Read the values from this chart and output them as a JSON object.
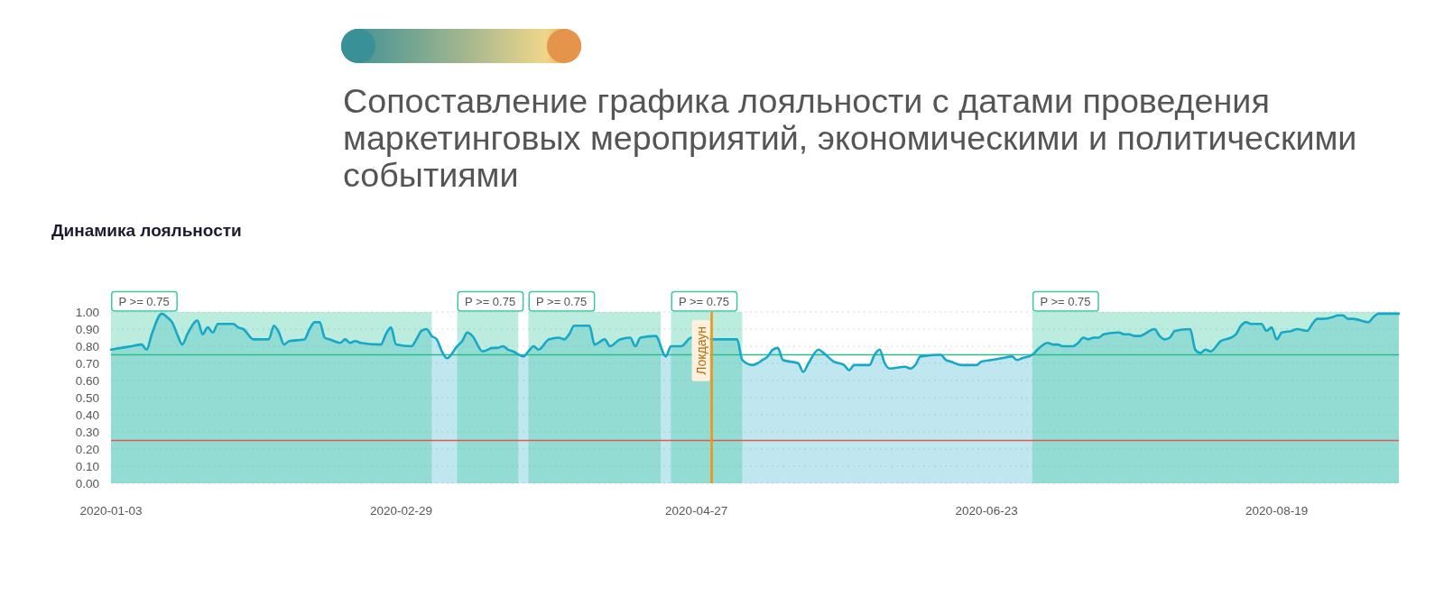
{
  "chart_data": {
    "type": "area",
    "title": "Сопоставление графика лояльности с датами проведения маркетинговых мероприятий, экономическими и политическими событиями",
    "subtitle": "Динамика лояльности",
    "x": [
      "2020-01-03",
      "2020-01-05",
      "2020-01-07",
      "2020-01-09",
      "2020-01-10",
      "2020-01-11",
      "2020-01-13",
      "2020-01-14",
      "2020-01-15",
      "2020-01-16",
      "2020-01-17",
      "2020-01-18",
      "2020-01-20",
      "2020-01-21",
      "2020-01-22",
      "2020-01-23",
      "2020-01-24",
      "2020-01-27",
      "2020-01-28",
      "2020-01-29",
      "2020-01-31",
      "2020-02-03",
      "2020-02-04",
      "2020-02-05",
      "2020-02-06",
      "2020-02-07",
      "2020-02-10",
      "2020-02-11",
      "2020-02-12",
      "2020-02-13",
      "2020-02-14",
      "2020-02-15",
      "2020-02-17",
      "2020-02-18",
      "2020-02-19",
      "2020-02-20",
      "2020-02-21",
      "2020-02-25",
      "2020-02-26",
      "2020-02-27",
      "2020-02-28",
      "2020-03-02",
      "2020-03-03",
      "2020-03-04",
      "2020-03-05",
      "2020-03-06",
      "2020-03-07",
      "2020-03-08",
      "2020-03-09",
      "2020-03-11",
      "2020-03-12",
      "2020-03-13",
      "2020-03-14",
      "2020-03-16",
      "2020-03-18",
      "2020-03-19",
      "2020-03-20",
      "2020-03-21",
      "2020-03-22",
      "2020-03-24",
      "2020-03-25",
      "2020-03-26",
      "2020-03-27",
      "2020-03-29",
      "2020-03-31",
      "2020-04-01",
      "2020-04-02",
      "2020-04-03",
      "2020-04-06",
      "2020-04-07",
      "2020-04-09",
      "2020-04-10",
      "2020-04-12",
      "2020-04-14",
      "2020-04-15",
      "2020-04-16",
      "2020-04-19",
      "2020-04-21",
      "2020-04-22",
      "2020-04-24",
      "2020-04-26",
      "2020-05-01",
      "2020-05-05",
      "2020-05-06",
      "2020-05-08",
      "2020-05-09",
      "2020-05-10",
      "2020-05-11",
      "2020-05-12",
      "2020-05-13",
      "2020-05-14",
      "2020-05-17",
      "2020-05-18",
      "2020-05-19",
      "2020-05-21",
      "2020-05-22",
      "2020-05-24",
      "2020-05-26",
      "2020-05-27",
      "2020-05-28",
      "2020-05-31",
      "2020-06-01",
      "2020-06-02",
      "2020-06-03",
      "2020-06-04",
      "2020-06-07",
      "2020-06-08",
      "2020-06-09",
      "2020-06-10",
      "2020-06-14",
      "2020-06-15",
      "2020-06-16",
      "2020-06-18",
      "2020-06-21",
      "2020-06-22",
      "2020-06-24",
      "2020-06-26",
      "2020-06-28",
      "2020-06-29",
      "2020-06-30",
      "2020-07-02",
      "2020-07-03",
      "2020-07-05",
      "2020-07-06",
      "2020-07-07",
      "2020-07-08",
      "2020-07-10",
      "2020-07-11",
      "2020-07-12",
      "2020-07-13",
      "2020-07-14",
      "2020-07-15",
      "2020-07-16",
      "2020-07-19",
      "2020-07-20",
      "2020-07-21",
      "2020-07-22",
      "2020-07-23",
      "2020-07-26",
      "2020-07-27",
      "2020-07-28",
      "2020-07-29",
      "2020-07-30",
      "2020-08-02",
      "2020-08-03",
      "2020-08-04",
      "2020-08-05",
      "2020-08-06",
      "2020-08-08",
      "2020-08-10",
      "2020-08-11",
      "2020-08-12",
      "2020-08-13",
      "2020-08-14",
      "2020-08-16",
      "2020-08-17",
      "2020-08-18",
      "2020-08-19",
      "2020-08-20",
      "2020-08-22",
      "2020-08-23",
      "2020-08-25",
      "2020-08-26",
      "2020-08-27",
      "2020-08-28",
      "2020-08-30",
      "2020-08-31",
      "2020-09-01",
      "2020-09-02",
      "2020-09-03",
      "2020-09-06",
      "2020-09-07",
      "2020-09-08",
      "2020-09-12"
    ],
    "series": [
      {
        "color": "#17a8c8",
        "values": [
          0.78,
          0.79,
          0.8,
          0.81,
          0.78,
          0.87,
          0.99,
          0.97,
          0.94,
          0.87,
          0.81,
          0.87,
          0.95,
          0.87,
          0.91,
          0.88,
          0.93,
          0.93,
          0.91,
          0.9,
          0.84,
          0.84,
          0.92,
          0.88,
          0.81,
          0.83,
          0.84,
          0.9,
          0.94,
          0.94,
          0.85,
          0.84,
          0.82,
          0.84,
          0.82,
          0.83,
          0.82,
          0.81,
          0.87,
          0.91,
          0.81,
          0.8,
          0.84,
          0.89,
          0.9,
          0.86,
          0.84,
          0.77,
          0.73,
          0.8,
          0.83,
          0.88,
          0.86,
          0.77,
          0.79,
          0.79,
          0.8,
          0.78,
          0.77,
          0.74,
          0.77,
          0.8,
          0.78,
          0.84,
          0.85,
          0.84,
          0.87,
          0.92,
          0.92,
          0.81,
          0.84,
          0.8,
          0.84,
          0.85,
          0.8,
          0.85,
          0.86,
          0.74,
          0.8,
          0.8,
          0.85,
          0.84,
          0.84,
          0.72,
          0.69,
          0.7,
          0.72,
          0.74,
          0.78,
          0.79,
          0.72,
          0.7,
          0.65,
          0.7,
          0.78,
          0.76,
          0.71,
          0.69,
          0.66,
          0.69,
          0.69,
          0.75,
          0.78,
          0.7,
          0.67,
          0.68,
          0.67,
          0.69,
          0.74,
          0.75,
          0.72,
          0.71,
          0.69,
          0.69,
          0.71,
          0.72,
          0.73,
          0.74,
          0.72,
          0.73,
          0.75,
          0.78,
          0.82,
          0.81,
          0.81,
          0.8,
          0.8,
          0.82,
          0.85,
          0.84,
          0.85,
          0.85,
          0.87,
          0.88,
          0.87,
          0.87,
          0.86,
          0.86,
          0.9,
          0.86,
          0.84,
          0.85,
          0.89,
          0.9,
          0.78,
          0.76,
          0.78,
          0.77,
          0.83,
          0.85,
          0.87,
          0.92,
          0.94,
          0.93,
          0.93,
          0.89,
          0.91,
          0.84,
          0.88,
          0.89,
          0.9,
          0.89,
          0.93,
          0.96,
          0.96,
          0.97,
          0.98,
          0.98,
          0.96,
          0.96,
          0.94,
          0.97,
          0.99,
          0.99
        ]
      }
    ],
    "xlim": [
      "2020-01-03",
      "2020-09-12"
    ],
    "xticks": [
      "2020-01-03",
      "2020-02-29",
      "2020-04-27",
      "2020-06-23",
      "2020-08-19"
    ],
    "ylim": [
      0,
      1
    ],
    "yticks": [
      {
        "value": 0,
        "label": "0.00"
      },
      {
        "value": 0.1,
        "label": "0.10"
      },
      {
        "value": 0.2,
        "label": "0.20"
      },
      {
        "value": 0.3,
        "label": "0.30"
      },
      {
        "value": 0.4,
        "label": "0.40"
      },
      {
        "value": 0.5,
        "label": "0.50"
      },
      {
        "value": 0.6,
        "label": "0.60"
      },
      {
        "value": 0.7,
        "label": "0.70"
      },
      {
        "value": 0.8,
        "label": "0.80"
      },
      {
        "value": 0.9,
        "label": "0.90"
      },
      {
        "value": 1,
        "label": "1.00"
      }
    ],
    "grid": "y",
    "ref_lines": [
      {
        "axis": "y",
        "value": 0.75,
        "color": "#2dbb8c"
      },
      {
        "axis": "y",
        "value": 0.25,
        "color": "#e05a4f"
      },
      {
        "axis": "x",
        "value": "2020-04-30",
        "label": "Локдаун",
        "color": "#f39412"
      }
    ],
    "bands": [
      {
        "axis": "x",
        "from": "2020-01-03",
        "to": "2020-03-06",
        "label": "P >= 0.75",
        "color": "#3cc8a0"
      },
      {
        "axis": "x",
        "from": "2020-03-11",
        "to": "2020-03-23",
        "label": "P >= 0.75",
        "color": "#3cc8a0"
      },
      {
        "axis": "x",
        "from": "2020-03-25",
        "to": "2020-04-20",
        "label": "P >= 0.75",
        "color": "#3cc8a0"
      },
      {
        "axis": "x",
        "from": "2020-04-22",
        "to": "2020-05-06",
        "label": "P >= 0.75",
        "color": "#3cc8a0"
      },
      {
        "axis": "x",
        "from": "2020-07-02",
        "to": "2020-09-12",
        "label": "P >= 0.75",
        "color": "#3cc8a0"
      }
    ]
  }
}
